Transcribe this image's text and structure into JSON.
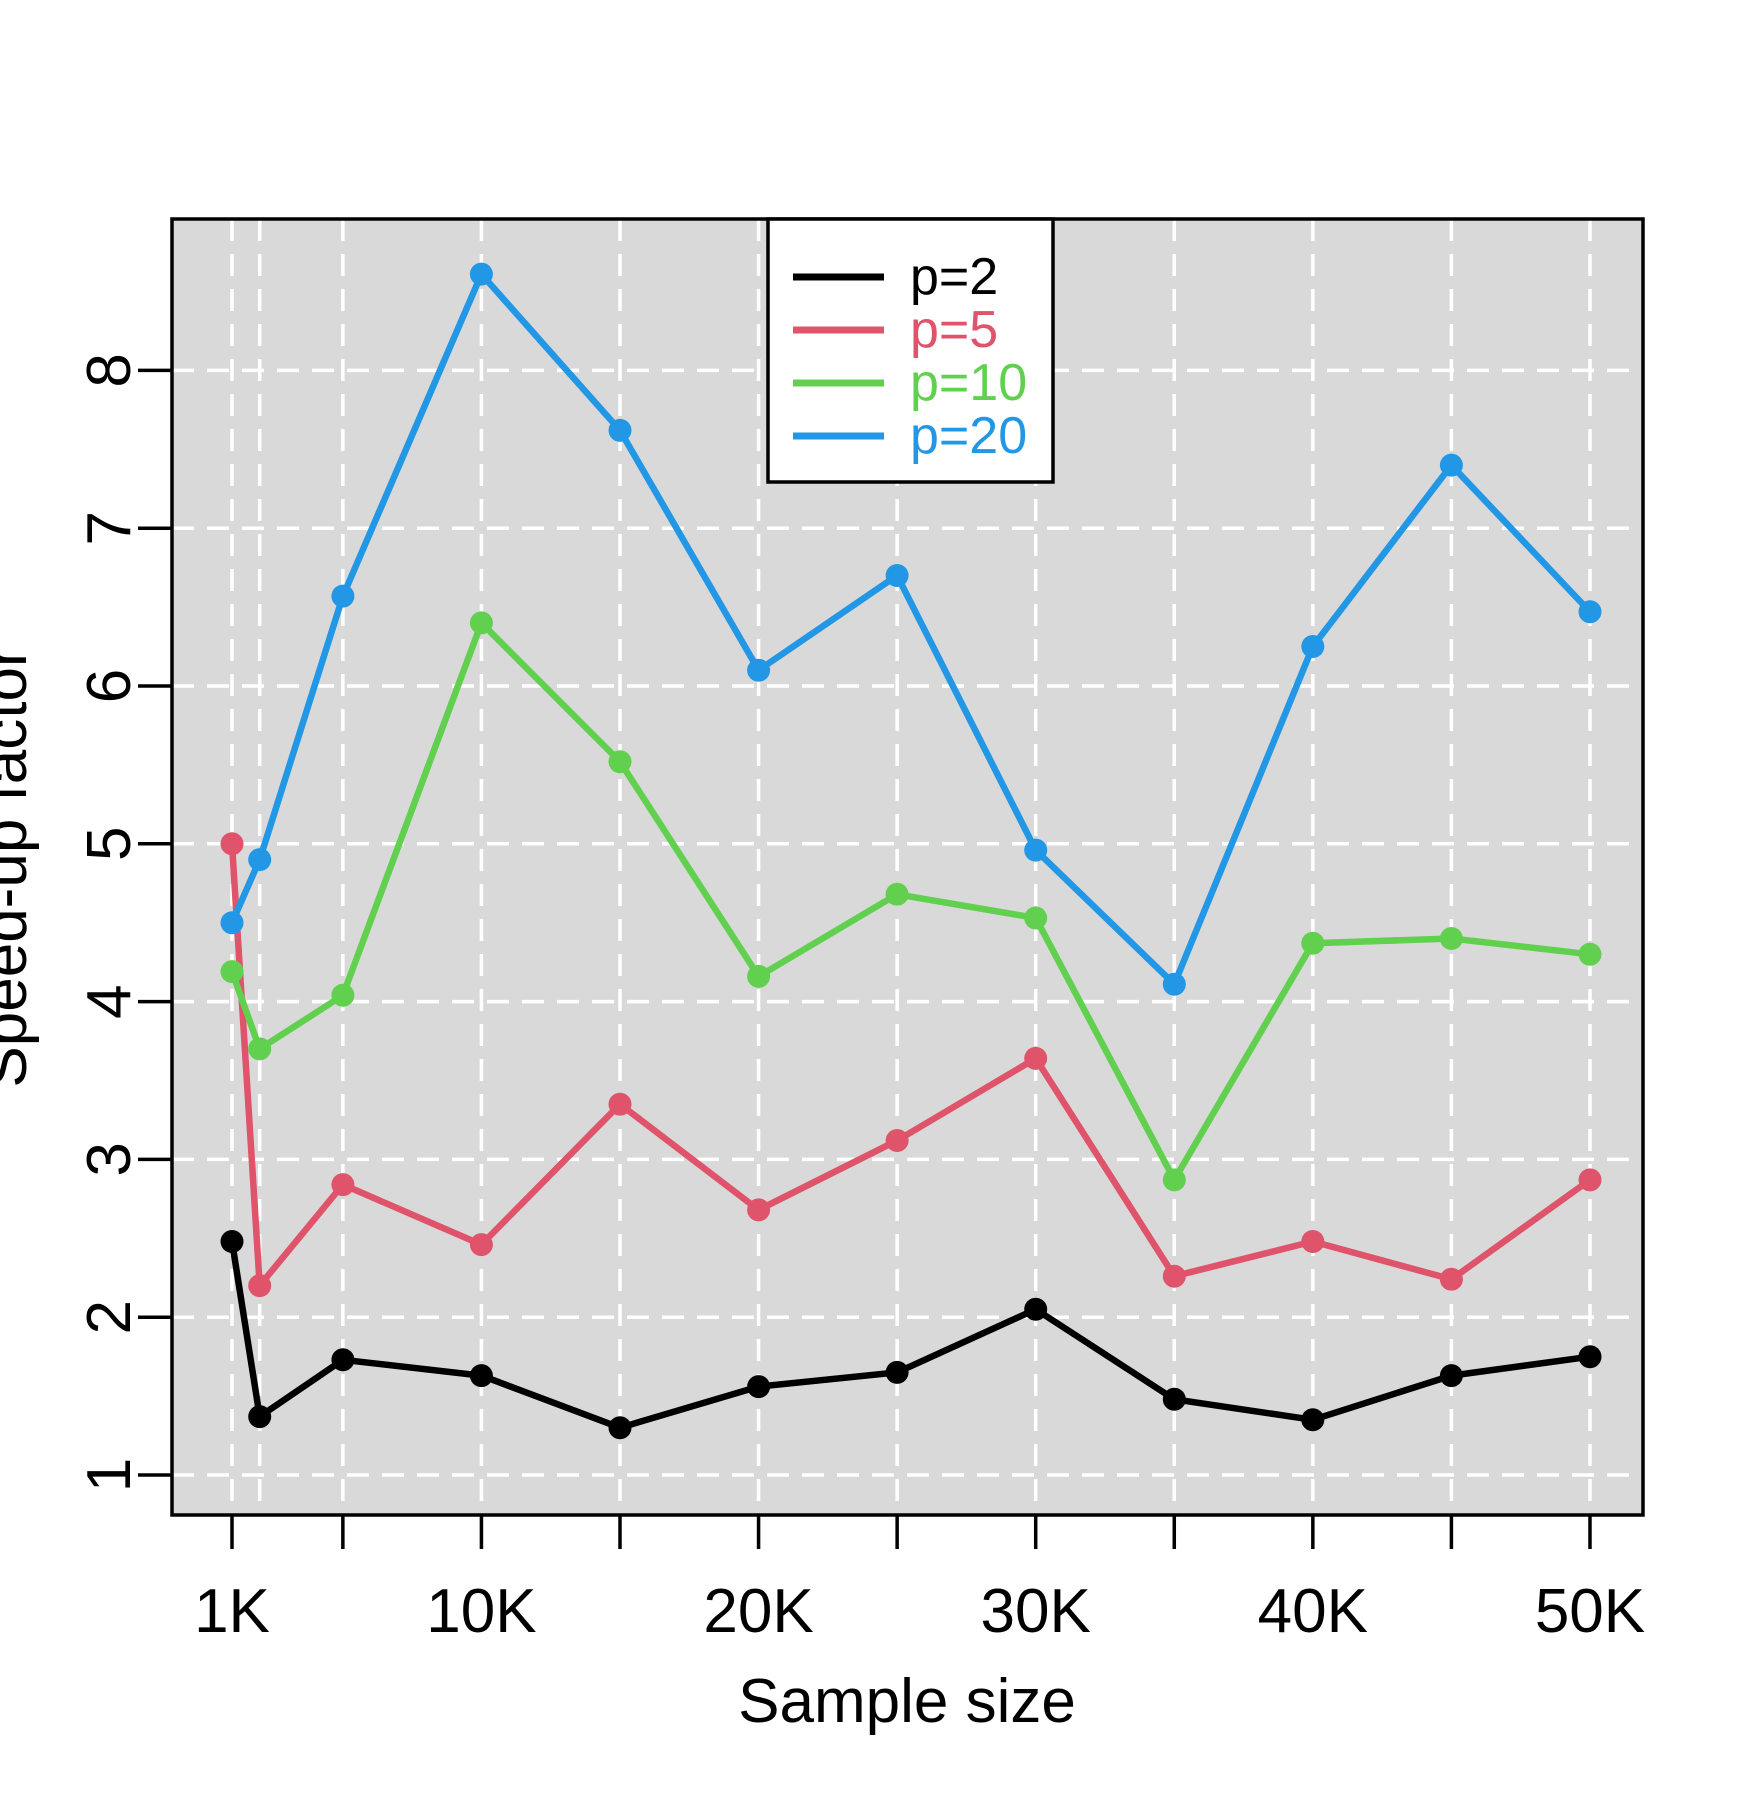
{
  "chart_data": {
    "type": "line",
    "title": "",
    "xlabel": "Sample size",
    "ylabel": "Speed-up factor",
    "x_unit": "K",
    "x_values_k": [
      1,
      2,
      5,
      10,
      15,
      20,
      25,
      30,
      35,
      40,
      45,
      50
    ],
    "x_axis_ticks_k": [
      1,
      5,
      10,
      15,
      20,
      25,
      30,
      35,
      40,
      45,
      50
    ],
    "x_labeled_ticks": {
      "1": "1K",
      "10": "10K",
      "20": "20K",
      "30": "30K",
      "40": "40K",
      "50": "50K"
    },
    "y_ticks": [
      1,
      2,
      3,
      4,
      5,
      6,
      7,
      8
    ],
    "ylim": [
      0.75,
      8.95
    ],
    "xlim_k": [
      -1.2,
      51.9
    ],
    "grid": true,
    "grid_style": "white-dashed",
    "plot_background": "#D9D9D9",
    "gridline_color": "#FFFFFF",
    "legend_position": "top-center",
    "series": [
      {
        "name": "p=2",
        "color": "#000000",
        "values": [
          2.48,
          1.37,
          1.73,
          1.63,
          1.3,
          1.56,
          1.65,
          2.05,
          1.48,
          1.35,
          1.63,
          1.75
        ]
      },
      {
        "name": "p=5",
        "color": "#DF536B",
        "values": [
          5.0,
          2.2,
          2.84,
          2.46,
          3.35,
          2.68,
          3.12,
          3.64,
          2.26,
          2.48,
          2.24,
          2.87
        ]
      },
      {
        "name": "p=10",
        "color": "#61D04F",
        "values": [
          4.19,
          3.7,
          4.04,
          6.4,
          5.52,
          4.16,
          4.68,
          4.53,
          2.87,
          4.37,
          4.4,
          4.3
        ]
      },
      {
        "name": "p=20",
        "color": "#2297E6",
        "values": [
          4.5,
          4.9,
          6.57,
          8.61,
          7.62,
          6.1,
          6.7,
          4.96,
          4.11,
          6.25,
          7.4,
          6.47
        ]
      }
    ]
  }
}
